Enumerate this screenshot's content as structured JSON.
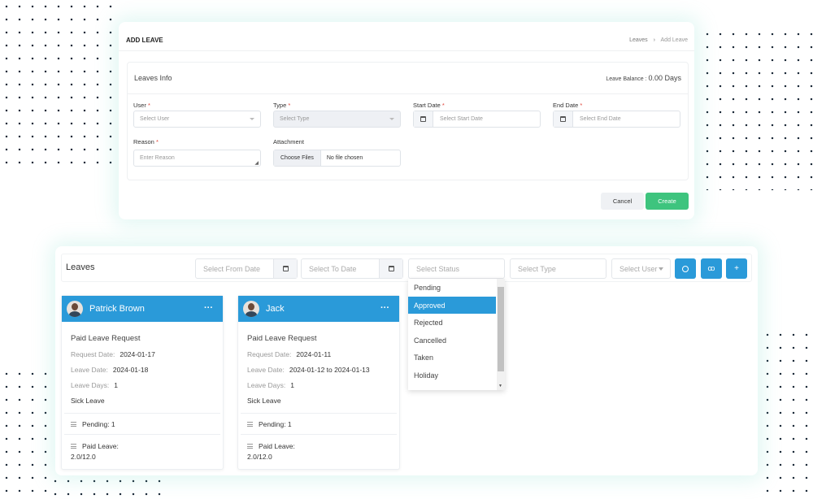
{
  "add_leave": {
    "title": "ADD LEAVE",
    "breadcrumb": [
      "Leaves",
      "Add Leave"
    ],
    "section_title": "Leaves Info",
    "balance_label": "Leave Balance :",
    "balance_value": "0.00 Days",
    "fields": {
      "user": {
        "label": "User",
        "placeholder": "Select User"
      },
      "type": {
        "label": "Type",
        "placeholder": "Select Type"
      },
      "start": {
        "label": "Start Date",
        "placeholder": "Select Start Date"
      },
      "end": {
        "label": "End Date",
        "placeholder": "Select End Date"
      },
      "reason": {
        "label": "Reason",
        "placeholder": "Enter Reason"
      },
      "attachment": {
        "label": "Attachment",
        "button": "Choose Files",
        "status": "No file chosen"
      }
    },
    "required_mark": "*",
    "cancel": "Cancel",
    "create": "Create"
  },
  "leaves": {
    "title": "Leaves",
    "filters": {
      "from": "Select From Date",
      "to": "Select To Date",
      "status": "Select Status",
      "type": "Select Type",
      "user": "Select User"
    },
    "buttons": {
      "plus": "+"
    },
    "status_options": [
      "Pending",
      "Approved",
      "Rejected",
      "Cancelled",
      "Taken",
      "Holiday"
    ],
    "selected_status": "Approved",
    "cards": [
      {
        "name": "Patrick Brown",
        "more": "···",
        "title": "Paid Leave Request",
        "request_label": "Request Date:",
        "request_date": "2024-01-17",
        "leave_label": "Leave Date:",
        "leave_date": "2024-01-18",
        "days_label": "Leave Days:",
        "days": "1",
        "kind": "Sick Leave",
        "pending": "Pending: 1",
        "paid_label": "Paid Leave:",
        "paid_value": "2.0/12.0"
      },
      {
        "name": "Jack",
        "more": "···",
        "title": "Paid Leave Request",
        "request_label": "Request Date:",
        "request_date": "2024-01-11",
        "leave_label": "Leave Date:",
        "leave_date": "2024-01-12 to 2024-01-13",
        "days_label": "Leave Days:",
        "days": "1",
        "kind": "Sick Leave",
        "pending": "Pending: 1",
        "paid_label": "Paid Leave:",
        "paid_value": "2.0/12.0"
      }
    ]
  },
  "colors": {
    "primary": "#2a9ad9",
    "success": "#3ec47e",
    "required": "#e0453a"
  }
}
